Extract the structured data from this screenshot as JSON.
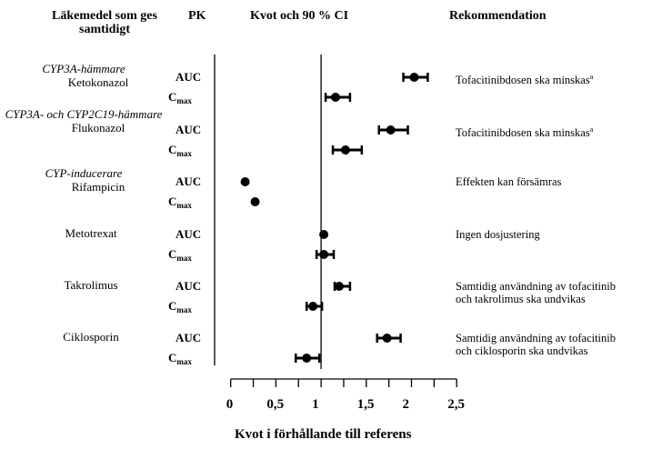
{
  "chart_data": {
    "type": "forest",
    "headers": {
      "drug": "Läkemedel som ges samtidigt",
      "pk": "PK",
      "ratio": "Kvot och 90 % CI",
      "recommendation": "Rekommendation"
    },
    "xlabel": "Kvot i förhållande till referens",
    "xlim": [
      0,
      2.5
    ],
    "xticks": [
      0,
      0.5,
      1,
      1.5,
      2,
      2.5
    ],
    "xtick_labels": [
      "0",
      "0,5",
      "1",
      "1,5",
      "2",
      "2,5"
    ],
    "minor_tick_step": 0.25,
    "reference_line": 1,
    "pk_labels": {
      "auc": "AUC",
      "cmax_base": "C",
      "cmax_sub": "max"
    },
    "footnote_marker": "a",
    "groups": [
      {
        "category": "CYP3A-hämmare",
        "drug": "Ketokonazol",
        "recommendation": [
          "Tofacitinibdosen ska minskas"
        ],
        "footnote": true,
        "auc": {
          "ratio": 2.03,
          "ci": [
            1.91,
            2.18
          ]
        },
        "cmax": {
          "ratio": 1.16,
          "ci": [
            1.05,
            1.32
          ]
        }
      },
      {
        "category": "CYP3A- och CYP2C19-hämmare",
        "drug": "Flukonazol",
        "recommendation": [
          "Tofacitinibdosen ska minskas"
        ],
        "footnote": true,
        "auc": {
          "ratio": 1.77,
          "ci": [
            1.64,
            1.96
          ]
        },
        "cmax": {
          "ratio": 1.27,
          "ci": [
            1.13,
            1.45
          ]
        }
      },
      {
        "category": "CYP-inducerare",
        "drug": "Rifampicin",
        "recommendation": [
          "Effekten kan försämras"
        ],
        "footnote": false,
        "auc": {
          "ratio": 0.16,
          "ci": [
            0.14,
            0.18
          ]
        },
        "cmax": {
          "ratio": 0.27,
          "ci": [
            0.24,
            0.3
          ]
        }
      },
      {
        "category": "",
        "drug": "Metotrexat",
        "recommendation": [
          "Ingen dosjustering"
        ],
        "footnote": false,
        "auc": {
          "ratio": 1.03,
          "ci": [
            1.0,
            1.06
          ]
        },
        "cmax": {
          "ratio": 1.03,
          "ci": [
            0.95,
            1.14
          ]
        }
      },
      {
        "category": "",
        "drug": "Takrolimus",
        "recommendation": [
          "Samtidig användning av tofacitinib",
          "och takrolimus ska undvikas"
        ],
        "footnote": false,
        "auc": {
          "ratio": 1.2,
          "ci": [
            1.15,
            1.32
          ]
        },
        "cmax": {
          "ratio": 0.91,
          "ci": [
            0.84,
            1.01
          ]
        }
      },
      {
        "category": "",
        "drug": "Ciklosporin",
        "recommendation": [
          "Samtidig användning av tofacitinib",
          "och ciklosporin ska undvikas"
        ],
        "footnote": false,
        "auc": {
          "ratio": 1.73,
          "ci": [
            1.62,
            1.88
          ]
        },
        "cmax": {
          "ratio": 0.84,
          "ci": [
            0.72,
            0.98
          ]
        }
      }
    ]
  }
}
